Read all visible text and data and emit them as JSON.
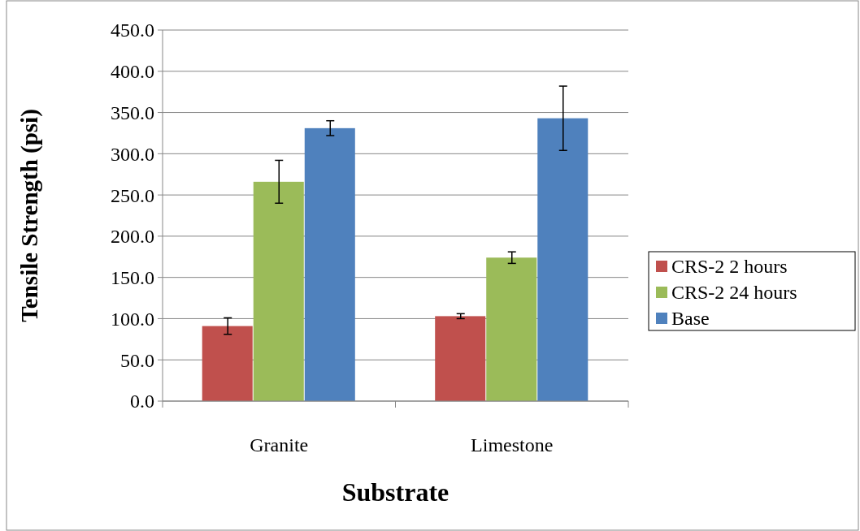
{
  "chart_data": {
    "type": "bar",
    "xlabel": "Substrate",
    "ylabel": "Tensile Strength (psi)",
    "categories": [
      "Granite",
      "Limestone"
    ],
    "series": [
      {
        "name": "CRS-2 2 hours",
        "color": "#c0504d",
        "values": [
          91,
          103
        ],
        "errors": [
          10,
          3
        ]
      },
      {
        "name": "CRS-2 24 hours",
        "color": "#9bbb59",
        "values": [
          266,
          174
        ],
        "errors": [
          26,
          7
        ]
      },
      {
        "name": "Base",
        "color": "#4f81bd",
        "values": [
          331,
          343
        ],
        "errors": [
          9,
          39
        ]
      }
    ],
    "ylim": [
      0,
      450
    ],
    "yticks": [
      {
        "value": 0,
        "label": "0.0"
      },
      {
        "value": 50,
        "label": "50.0"
      },
      {
        "value": 100,
        "label": "100.0"
      },
      {
        "value": 150,
        "label": "150.0"
      },
      {
        "value": 200,
        "label": "200.0"
      },
      {
        "value": 250,
        "label": "250.0"
      },
      {
        "value": 300,
        "label": "300.0"
      },
      {
        "value": 350,
        "label": "350.0"
      },
      {
        "value": 400,
        "label": "400.0"
      },
      {
        "value": 450,
        "label": "450.0"
      }
    ],
    "grid": "y",
    "legend": "right"
  }
}
